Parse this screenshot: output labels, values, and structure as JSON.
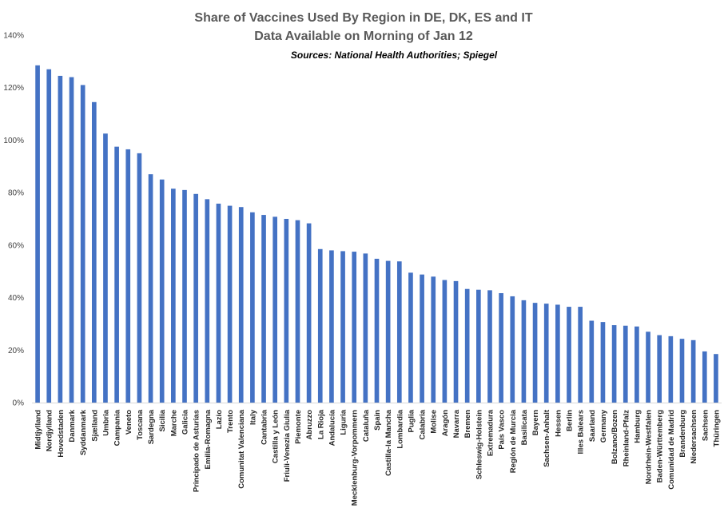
{
  "chart_data": {
    "type": "bar",
    "title": "Share of Vaccines Used By Region in DE, DK, ES and IT",
    "subtitle": "Data Available on Morning of Jan 12",
    "source": "Sources: National Health Authorities; Spiegel",
    "xlabel": "",
    "ylabel": "",
    "ylim": [
      0,
      1.4
    ],
    "yticks": [
      "0%",
      "20%",
      "40%",
      "60%",
      "80%",
      "100%",
      "120%",
      "140%"
    ],
    "grid": false,
    "legend": "none",
    "bar_color": "#4472C4",
    "categories": [
      "Midtjylland",
      "Nordjylland",
      "Hovedstaden",
      "Danmark",
      "Syddanmark",
      "Sjælland",
      "Umbria",
      "Campania",
      "Veneto",
      "Toscana",
      "Sardegna",
      "Sicilia",
      "Marche",
      "Galicia",
      "Principado de Asturias",
      "Emilia-Romagna",
      "Lazio",
      "Trento",
      "Comunitat Valenciana",
      "Italy",
      "Cantabria",
      "Castilla y León",
      "Friuli-Venezia Giulia",
      "Piemonte",
      "Abruzzo",
      "La Rioja",
      "Andalucía",
      "Liguria",
      "Mecklenburg-Vorpommern",
      "Cataluña",
      "Spain",
      "Castilla-la Mancha",
      "Lombardia",
      "Puglia",
      "Calabria",
      "Molise",
      "Aragón",
      "Navarra",
      "Bremen",
      "Schleswig-Holstein",
      "Extremadura",
      "País Vasco",
      "Región de Murcia",
      "Basilicata",
      "Bayern",
      "Sachsen-Anhalt",
      "Hessen",
      "Berlin",
      "Illes Balears",
      "Saarland",
      "Germany",
      "Bolzano/Bozen",
      "Rheinland-Pfalz",
      "Hamburg",
      "Nordrhein-Westfalen",
      "Baden-Württemberg",
      "Comunidad de Madrid",
      "Brandenburg",
      "Niedersachsen",
      "Sachsen",
      "Thüringen"
    ],
    "values": [
      1.285,
      1.27,
      1.245,
      1.24,
      1.21,
      1.145,
      1.025,
      0.975,
      0.965,
      0.95,
      0.87,
      0.85,
      0.815,
      0.81,
      0.795,
      0.775,
      0.758,
      0.75,
      0.745,
      0.725,
      0.715,
      0.708,
      0.7,
      0.695,
      0.683,
      0.585,
      0.58,
      0.577,
      0.575,
      0.568,
      0.548,
      0.54,
      0.538,
      0.495,
      0.488,
      0.48,
      0.467,
      0.463,
      0.433,
      0.43,
      0.428,
      0.417,
      0.405,
      0.39,
      0.38,
      0.377,
      0.373,
      0.365,
      0.365,
      0.312,
      0.307,
      0.295,
      0.293,
      0.29,
      0.27,
      0.257,
      0.253,
      0.243,
      0.238,
      0.195,
      0.185
    ]
  }
}
